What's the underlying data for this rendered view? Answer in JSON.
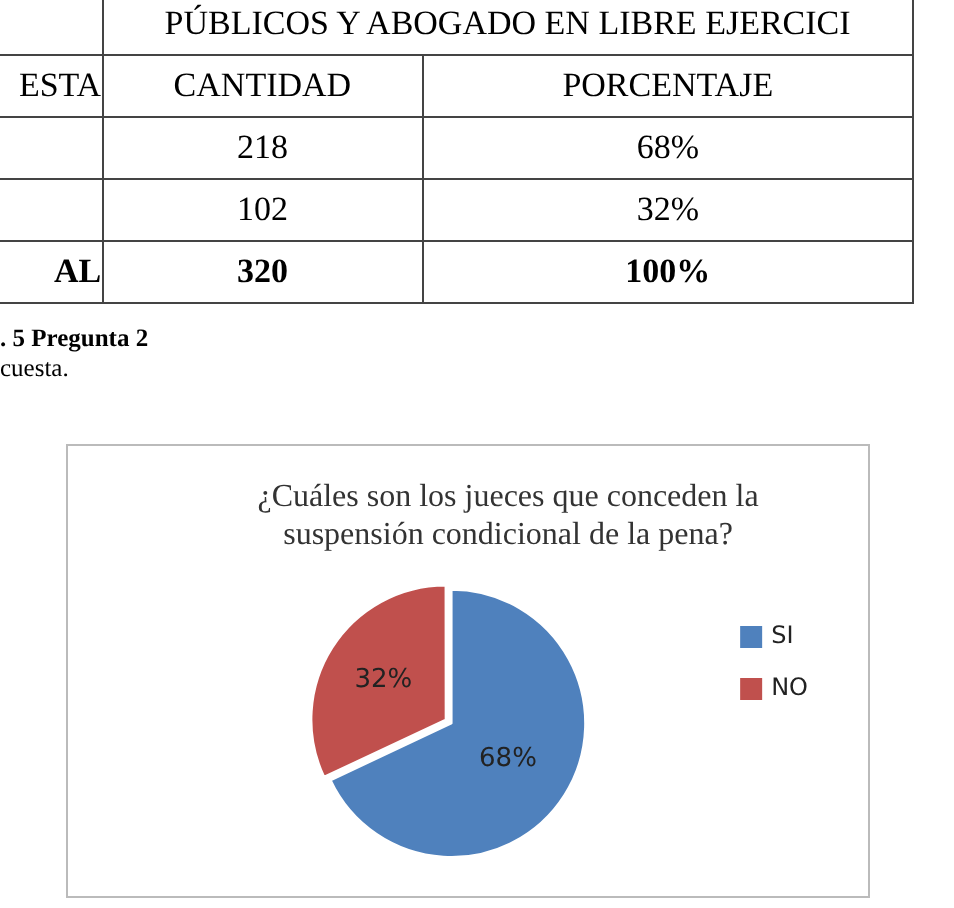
{
  "chart_data": {
    "type": "pie",
    "title": [
      "¿Cuáles son los jueces que conceden la",
      "suspensión condicional de la pena?"
    ],
    "categories": [
      "SI",
      "NO"
    ],
    "values": [
      68,
      32
    ],
    "colors": [
      "#4f81bd",
      "#c0504d"
    ],
    "value_labels": [
      "68%",
      "32%"
    ],
    "legend": "right",
    "annotations": [
      "PÚBLICOS Y ABOGADO EN LIBRE EJERCICI",
      "ESTA",
      "CANTIDAD",
      "PORCENTAJE",
      "218",
      "68%",
      "102",
      "32%",
      "AL",
      "320",
      "100%",
      ". 5 Pregunta 2",
      "cuesta."
    ]
  }
}
